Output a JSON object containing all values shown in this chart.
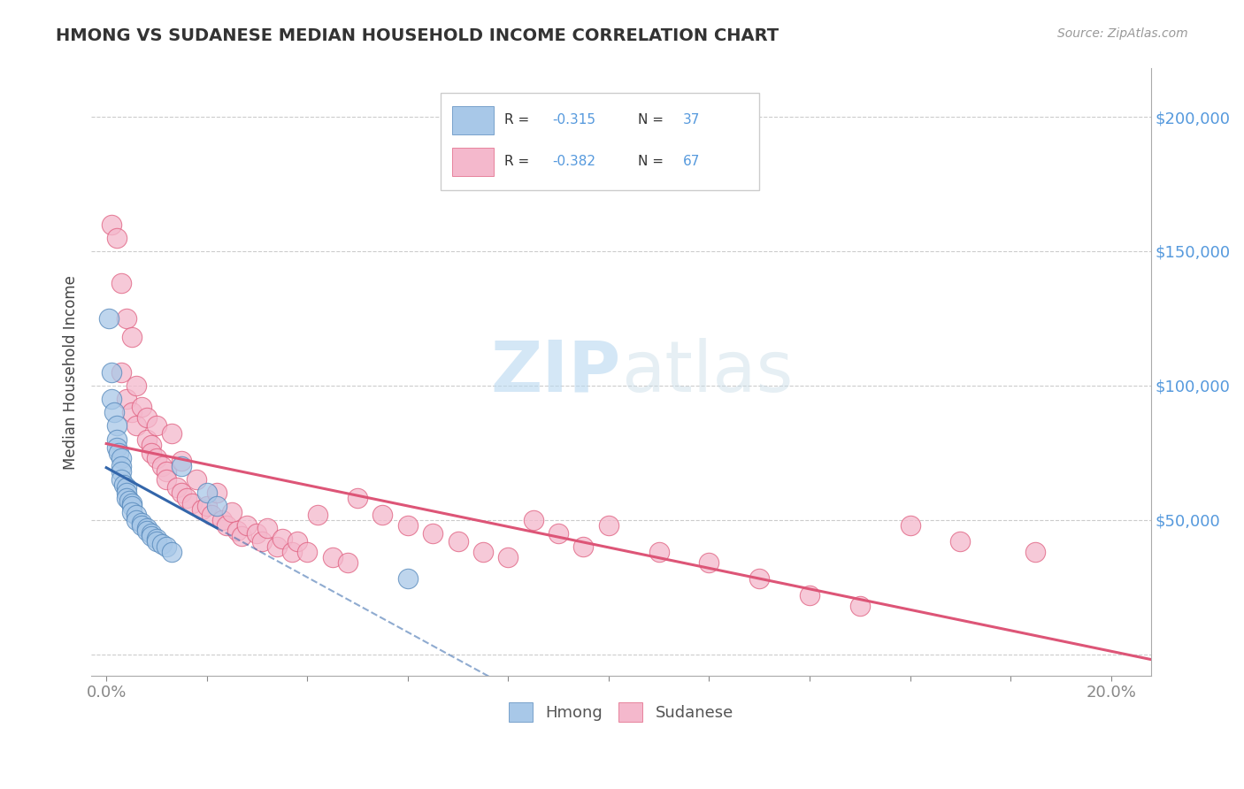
{
  "title": "HMONG VS SUDANESE MEDIAN HOUSEHOLD INCOME CORRELATION CHART",
  "source": "Source: ZipAtlas.com",
  "ylabel_label": "Median Household Income",
  "x_ticks": [
    0.0,
    0.02,
    0.04,
    0.06,
    0.08,
    0.1,
    0.12,
    0.14,
    0.16,
    0.18,
    0.2
  ],
  "x_tick_labels": [
    "0.0%",
    "",
    "",
    "",
    "",
    "",
    "",
    "",
    "",
    "",
    "20.0%"
  ],
  "y_ticks": [
    0,
    50000,
    100000,
    150000,
    200000
  ],
  "y_tick_labels_right": [
    "",
    "$50,000",
    "$100,000",
    "$150,000",
    "$200,000"
  ],
  "xlim": [
    -0.003,
    0.208
  ],
  "ylim": [
    -8000,
    218000
  ],
  "hmong_color": "#a8c8e8",
  "sudanese_color": "#f4b8cc",
  "hmong_edge_color": "#5588bb",
  "sudanese_edge_color": "#e06080",
  "hmong_line_color": "#3366aa",
  "sudanese_line_color": "#dd5577",
  "watermark_zip": "ZIP",
  "watermark_atlas": "atlas",
  "legend_label_hmong": "Hmong",
  "legend_label_sudanese": "Sudanese",
  "hmong_x": [
    0.0005,
    0.001,
    0.001,
    0.0015,
    0.002,
    0.002,
    0.002,
    0.0025,
    0.003,
    0.003,
    0.003,
    0.003,
    0.0035,
    0.004,
    0.004,
    0.004,
    0.0045,
    0.005,
    0.005,
    0.005,
    0.006,
    0.006,
    0.007,
    0.007,
    0.008,
    0.008,
    0.009,
    0.009,
    0.01,
    0.01,
    0.011,
    0.012,
    0.013,
    0.015,
    0.02,
    0.022,
    0.06
  ],
  "hmong_y": [
    125000,
    105000,
    95000,
    90000,
    85000,
    80000,
    77000,
    75000,
    73000,
    70000,
    68000,
    65000,
    63000,
    62000,
    60000,
    58000,
    57000,
    56000,
    55000,
    53000,
    52000,
    50000,
    49000,
    48000,
    47000,
    46000,
    45000,
    44000,
    43000,
    42000,
    41000,
    40000,
    38000,
    70000,
    60000,
    55000,
    28000
  ],
  "sudanese_x": [
    0.001,
    0.002,
    0.003,
    0.003,
    0.004,
    0.004,
    0.005,
    0.005,
    0.006,
    0.006,
    0.007,
    0.008,
    0.008,
    0.009,
    0.009,
    0.01,
    0.01,
    0.011,
    0.012,
    0.012,
    0.013,
    0.014,
    0.015,
    0.015,
    0.016,
    0.017,
    0.018,
    0.019,
    0.02,
    0.021,
    0.022,
    0.023,
    0.024,
    0.025,
    0.026,
    0.027,
    0.028,
    0.03,
    0.031,
    0.032,
    0.034,
    0.035,
    0.037,
    0.038,
    0.04,
    0.042,
    0.045,
    0.048,
    0.05,
    0.055,
    0.06,
    0.065,
    0.07,
    0.075,
    0.08,
    0.085,
    0.09,
    0.095,
    0.1,
    0.11,
    0.12,
    0.13,
    0.14,
    0.15,
    0.16,
    0.17,
    0.185
  ],
  "sudanese_y": [
    160000,
    155000,
    105000,
    138000,
    125000,
    95000,
    90000,
    118000,
    85000,
    100000,
    92000,
    80000,
    88000,
    78000,
    75000,
    73000,
    85000,
    70000,
    68000,
    65000,
    82000,
    62000,
    72000,
    60000,
    58000,
    56000,
    65000,
    54000,
    55000,
    52000,
    60000,
    50000,
    48000,
    53000,
    46000,
    44000,
    48000,
    45000,
    42000,
    47000,
    40000,
    43000,
    38000,
    42000,
    38000,
    52000,
    36000,
    34000,
    58000,
    52000,
    48000,
    45000,
    42000,
    38000,
    36000,
    50000,
    45000,
    40000,
    48000,
    38000,
    34000,
    28000,
    22000,
    18000,
    48000,
    42000,
    38000
  ],
  "hmong_line_start_x": 0.0,
  "hmong_line_end_solid_x": 0.022,
  "hmong_line_end_dash_x": 0.208,
  "sudanese_line_start_x": 0.0,
  "sudanese_line_end_x": 0.208
}
